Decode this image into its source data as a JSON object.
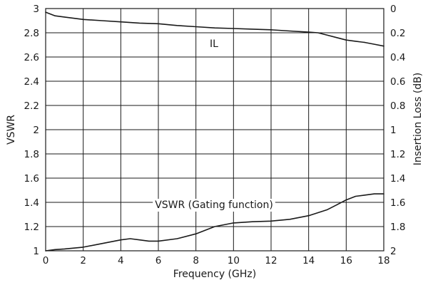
{
  "chart_data": {
    "type": "line",
    "xlabel": "Frequency (GHz)",
    "ylabel_left": "VSWR",
    "ylabel_right": "Insertion Loss (dB)",
    "xlim": [
      0,
      18
    ],
    "ylim_left": [
      1,
      3
    ],
    "ylim_right": [
      0,
      2
    ],
    "right_axis_inverted": true,
    "grid": true,
    "x_ticks": [
      "0",
      "2",
      "4",
      "6",
      "8",
      "10",
      "12",
      "14",
      "16",
      "18"
    ],
    "y_ticks_left": [
      "1",
      "1.2",
      "1.4",
      "1.6",
      "1.8",
      "2",
      "2.2",
      "2.4",
      "2.6",
      "2.8",
      "3"
    ],
    "y_ticks_right": [
      "0",
      "0.2",
      "0.4",
      "0.6",
      "0.8",
      "1",
      "1.2",
      "1.4",
      "1.6",
      "1.8",
      "2"
    ],
    "annotations": [
      {
        "text": "IL",
        "series": "il"
      },
      {
        "text": "VSWR (Gating function)",
        "series": "vswr"
      }
    ],
    "series": [
      {
        "id": "il",
        "axis": "right",
        "x": [
          0,
          0.5,
          1,
          2,
          3,
          4,
          5,
          6,
          7,
          8,
          9,
          10,
          11,
          12,
          13,
          14,
          14.5,
          15,
          15.5,
          16,
          16.5,
          17,
          17.5,
          18
        ],
        "values": [
          0.03,
          0.06,
          0.07,
          0.09,
          0.1,
          0.11,
          0.12,
          0.125,
          0.14,
          0.15,
          0.16,
          0.165,
          0.17,
          0.175,
          0.185,
          0.195,
          0.2,
          0.22,
          0.24,
          0.26,
          0.27,
          0.28,
          0.295,
          0.31
        ]
      },
      {
        "id": "vswr",
        "axis": "left",
        "x": [
          0,
          0.5,
          1,
          2,
          3,
          4,
          4.5,
          5,
          5.5,
          6,
          7,
          8,
          9,
          10,
          11,
          12,
          13,
          14,
          15,
          15.5,
          16,
          16.5,
          17,
          17.5,
          18
        ],
        "values": [
          1.0,
          1.01,
          1.015,
          1.03,
          1.06,
          1.09,
          1.1,
          1.09,
          1.08,
          1.08,
          1.1,
          1.14,
          1.2,
          1.23,
          1.24,
          1.245,
          1.26,
          1.29,
          1.34,
          1.38,
          1.42,
          1.45,
          1.46,
          1.47,
          1.47
        ]
      }
    ]
  }
}
